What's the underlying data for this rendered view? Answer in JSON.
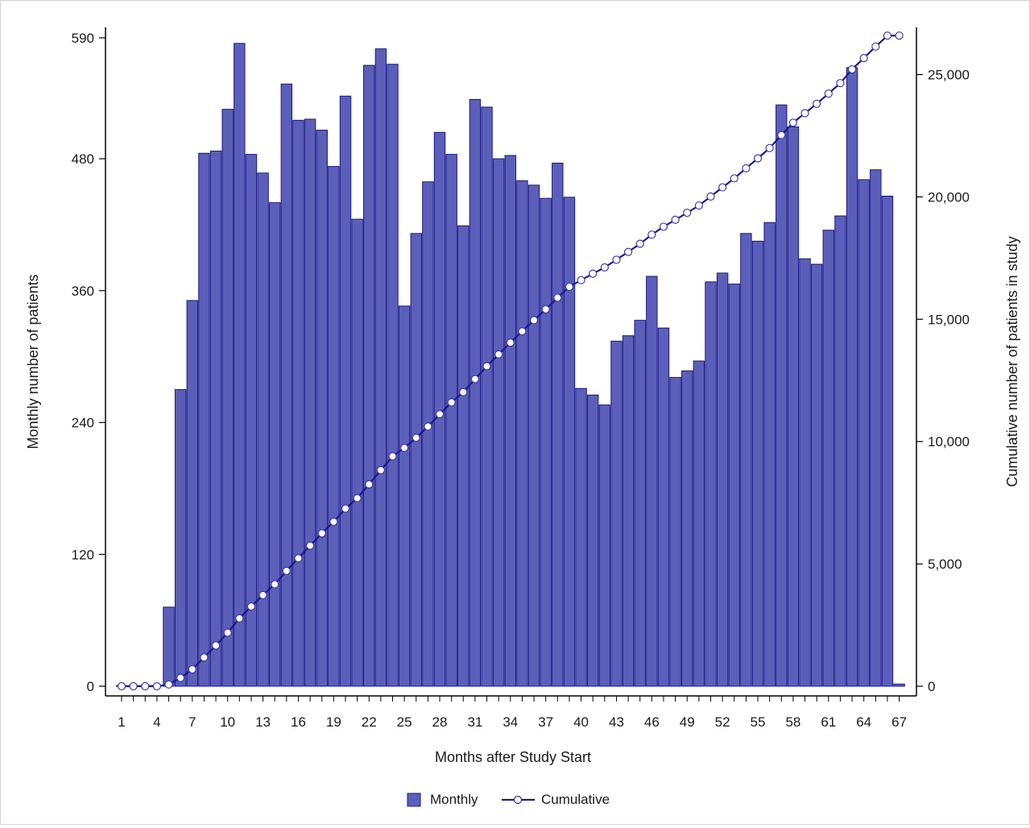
{
  "chart_data": {
    "type": "bar",
    "title": "",
    "xlabel": "Months after Study Start",
    "ylabel": "Monthly number of patients",
    "y2label": "Cumulative number of patients in study",
    "x": [
      1,
      2,
      3,
      4,
      5,
      6,
      7,
      8,
      9,
      10,
      11,
      12,
      13,
      14,
      15,
      16,
      17,
      18,
      19,
      20,
      21,
      22,
      23,
      24,
      25,
      26,
      27,
      28,
      29,
      30,
      31,
      32,
      33,
      34,
      35,
      36,
      37,
      38,
      39,
      40,
      41,
      42,
      43,
      44,
      45,
      46,
      47,
      48,
      49,
      50,
      51,
      52,
      53,
      54,
      55,
      56,
      57,
      58,
      59,
      60,
      61,
      62,
      63,
      64,
      65,
      66,
      67
    ],
    "x_tick_labels": [
      "1",
      "4",
      "7",
      "10",
      "13",
      "16",
      "19",
      "22",
      "25",
      "28",
      "31",
      "34",
      "37",
      "40",
      "43",
      "46",
      "49",
      "52",
      "55",
      "58",
      "61",
      "64",
      "67"
    ],
    "ylim": [
      0,
      590
    ],
    "y_ticks": [
      0,
      120,
      240,
      360,
      480,
      590
    ],
    "y_tick_labels": [
      "0",
      "120",
      "240",
      "360",
      "480",
      "590"
    ],
    "y2lim": [
      0,
      26500
    ],
    "y2_ticks": [
      0,
      5000,
      10000,
      15000,
      20000,
      25000
    ],
    "y2_tick_labels": [
      "0",
      "5,000",
      "10,000",
      "15,000",
      "20,000",
      "25,000"
    ],
    "series": [
      {
        "name": "Monthly",
        "type": "bar",
        "axis": "left",
        "color": "#5b5fb8",
        "values": [
          0,
          0,
          0,
          0,
          72,
          270,
          351,
          485,
          487,
          525,
          585,
          484,
          467,
          440,
          548,
          515,
          516,
          506,
          473,
          537,
          425,
          565,
          580,
          566,
          346,
          412,
          459,
          504,
          484,
          419,
          534,
          527,
          480,
          483,
          460,
          456,
          444,
          476,
          445,
          271,
          265,
          256,
          314,
          319,
          333,
          373,
          326,
          281,
          287,
          296,
          368,
          376,
          366,
          412,
          405,
          422,
          529,
          509,
          389,
          384,
          415,
          428,
          563,
          461,
          470,
          446,
          2
        ]
      },
      {
        "name": "Cumulative",
        "type": "line",
        "axis": "right",
        "color": "#1a1a8c",
        "marker": "open-circle",
        "values": [
          0,
          0,
          0,
          0,
          72,
          342,
          693,
          1178,
          1665,
          2190,
          2775,
          3259,
          3726,
          4166,
          4714,
          5229,
          5745,
          6251,
          6724,
          7261,
          7686,
          8251,
          8831,
          9397,
          9743,
          10155,
          10614,
          11118,
          11602,
          12021,
          12555,
          13082,
          13562,
          14045,
          14505,
          14961,
          15405,
          15881,
          16326,
          16597,
          16862,
          17118,
          17432,
          17751,
          18084,
          18457,
          18783,
          19064,
          19351,
          19647,
          20015,
          20391,
          20757,
          21169,
          21574,
          21996,
          22525,
          23034,
          23423,
          23807,
          24222,
          24650,
          25213,
          25674,
          26144,
          26590,
          26592
        ]
      }
    ],
    "legend": {
      "position": "bottom-center",
      "entries": [
        "Monthly",
        "Cumulative"
      ]
    },
    "grid": false
  }
}
